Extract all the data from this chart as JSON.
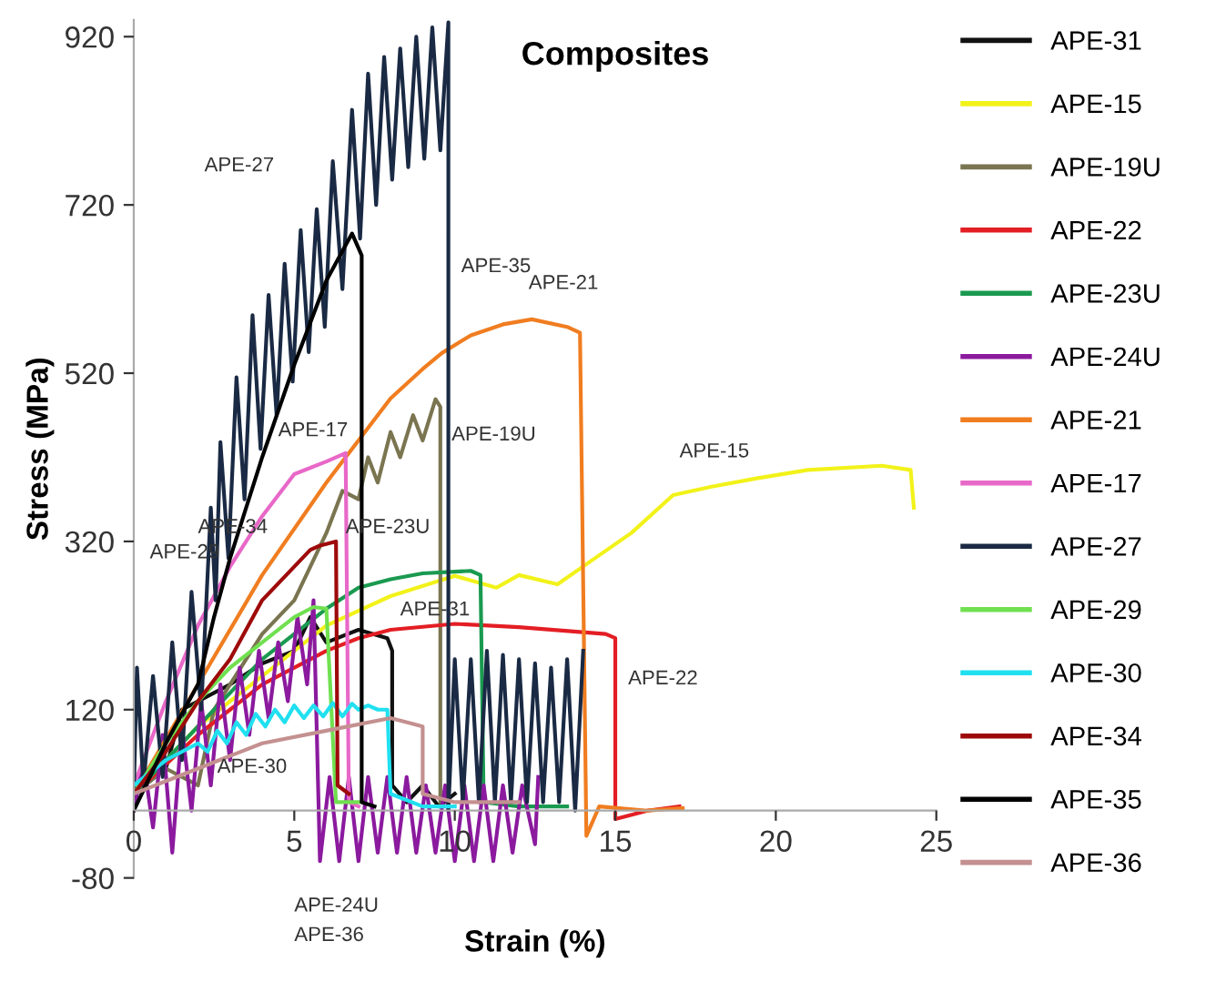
{
  "chart_data": {
    "type": "line",
    "title": "Composites",
    "xlabel": "Strain (%)",
    "ylabel": "Stress (MPa)",
    "xlim": [
      0,
      25
    ],
    "ylim": [
      -80,
      940
    ],
    "xticks": [
      0,
      5,
      10,
      15,
      20,
      25
    ],
    "yticks": [
      -80,
      120,
      320,
      520,
      720,
      920
    ],
    "grid": false,
    "legend": "right",
    "marker": "none",
    "line_style": "solid",
    "series": [
      {
        "name": "APE-31",
        "color": "#111111",
        "x": [
          0,
          1,
          1.5,
          2,
          3,
          4,
          5,
          5.5,
          6,
          7,
          7.9,
          8.05,
          8.05,
          8.5,
          9,
          9.5,
          10
        ],
        "values": [
          20,
          50,
          120,
          130,
          150,
          175,
          190,
          230,
          200,
          215,
          205,
          190,
          30,
          10,
          30,
          5,
          20
        ]
      },
      {
        "name": "APE-15",
        "color": "#f2f21a",
        "x": [
          0,
          2,
          4,
          6,
          8,
          10,
          11.3,
          12,
          13.2,
          14.1,
          15.5,
          16.8,
          18,
          19.4,
          21,
          23.3,
          24.2,
          24.3
        ],
        "values": [
          20,
          100,
          160,
          220,
          255,
          279,
          265,
          280,
          269,
          293,
          330,
          375,
          385,
          395,
          405,
          410,
          405,
          360
        ]
      },
      {
        "name": "APE-19U",
        "color": "#7a7550",
        "x": [
          0,
          1,
          2,
          2.5,
          3,
          4,
          5,
          5.5,
          6,
          6.5,
          7,
          7.3,
          7.6,
          8,
          8.3,
          8.7,
          9,
          9.4,
          9.55,
          9.55
        ],
        "values": [
          20,
          50,
          30,
          120,
          150,
          210,
          250,
          290,
          330,
          380,
          370,
          420,
          390,
          450,
          420,
          470,
          440,
          489,
          480,
          10
        ]
      },
      {
        "name": "APE-22",
        "color": "#e31e24",
        "x": [
          0,
          2,
          4,
          6,
          7,
          8,
          10,
          12,
          14.7,
          15,
          15,
          16,
          17
        ],
        "values": [
          20,
          90,
          150,
          190,
          205,
          215,
          222,
          218,
          210,
          205,
          -10,
          0,
          5
        ]
      },
      {
        "name": "APE-23U",
        "color": "#1a9a50",
        "x": [
          0,
          2,
          4,
          6,
          7,
          8,
          9,
          10.5,
          10.8,
          10.9,
          12,
          13.5
        ],
        "values": [
          20,
          100,
          180,
          240,
          265,
          275,
          282,
          285,
          280,
          10,
          5,
          5
        ]
      },
      {
        "name": "APE-24U",
        "color": "#8b1a9e",
        "x": [
          0,
          0.3,
          0.6,
          0.9,
          1.2,
          1.5,
          1.8,
          2.1,
          2.4,
          2.7,
          3,
          3.3,
          3.6,
          3.9,
          4.2,
          4.5,
          4.8,
          5.1,
          5.4,
          5.6,
          5.8,
          6.1,
          6.4,
          6.7,
          7,
          7.3,
          7.6,
          7.9,
          8.2,
          8.5,
          8.8,
          9.1,
          9.4,
          9.7,
          10,
          10.3,
          10.6,
          10.9,
          11.2,
          11.5,
          11.8,
          12.1,
          12.5,
          12.6
        ],
        "values": [
          0,
          60,
          -20,
          90,
          -50,
          100,
          0,
          130,
          30,
          150,
          60,
          170,
          90,
          190,
          110,
          200,
          130,
          230,
          150,
          250,
          -60,
          40,
          -60,
          40,
          -60,
          40,
          -50,
          40,
          -50,
          40,
          -50,
          30,
          -50,
          30,
          -60,
          30,
          -60,
          30,
          -60,
          30,
          -50,
          30,
          -40,
          40
        ]
      },
      {
        "name": "APE-21",
        "color": "#f07d20",
        "x": [
          0,
          2,
          4,
          6,
          7,
          8,
          9,
          9.6,
          10.5,
          11.5,
          12.4,
          13.5,
          13.9,
          14.1,
          14.5,
          16,
          17.1
        ],
        "values": [
          20,
          150,
          280,
          390,
          440,
          490,
          525,
          544,
          565,
          578,
          584,
          575,
          568,
          -30,
          5,
          0,
          3
        ]
      },
      {
        "name": "APE-17",
        "color": "#e868c8",
        "x": [
          0,
          1,
          2,
          3,
          4,
          5,
          6,
          6.6,
          6.7,
          7
        ],
        "values": [
          30,
          130,
          220,
          290,
          350,
          400,
          415,
          425,
          10,
          5
        ]
      },
      {
        "name": "APE-27",
        "color": "#1a2a44",
        "x": [
          0,
          0.1,
          0.3,
          0.6,
          0.9,
          1.2,
          1.5,
          1.8,
          2.1,
          2.4,
          2.55,
          2.7,
          2.95,
          3.2,
          3.45,
          3.7,
          3.95,
          4.2,
          4.45,
          4.7,
          4.95,
          5.2,
          5.45,
          5.7,
          5.95,
          6.2,
          6.5,
          6.8,
          7.05,
          7.3,
          7.55,
          7.8,
          8.05,
          8.3,
          8.55,
          8.8,
          9.05,
          9.3,
          9.55,
          9.8,
          9.8,
          10,
          10.25,
          10.5,
          10.75,
          11,
          11.25,
          11.5,
          11.75,
          12,
          12.25,
          12.5,
          12.75,
          13,
          13.25,
          13.5,
          13.75,
          14
        ],
        "values": [
          20,
          170,
          30,
          160,
          40,
          200,
          60,
          260,
          120,
          360,
          250,
          438,
          300,
          515,
          370,
          589,
          430,
          613,
          470,
          650,
          510,
          690,
          545,
          715,
          575,
          772,
          620,
          833,
          680,
          876,
          720,
          896,
          750,
          906,
          765,
          920,
          775,
          931,
          785,
          937,
          0,
          180,
          10,
          180,
          10,
          190,
          10,
          185,
          10,
          180,
          10,
          175,
          10,
          170,
          10,
          180,
          0,
          190
        ]
      },
      {
        "name": "APE-29",
        "color": "#70e050",
        "x": [
          0,
          1,
          2,
          3,
          4,
          5,
          5.6,
          6,
          6.3,
          7
        ],
        "values": [
          20,
          80,
          130,
          170,
          200,
          230,
          242,
          240,
          10,
          10
        ]
      },
      {
        "name": "APE-30",
        "color": "#20e0f0",
        "x": [
          0,
          1,
          2,
          2.3,
          2.6,
          2.9,
          3.2,
          3.5,
          3.8,
          4.1,
          4.4,
          4.7,
          5,
          5.3,
          5.6,
          5.9,
          6.2,
          6.5,
          6.8,
          7,
          7.3,
          7.6,
          7.9,
          8,
          9,
          10
        ],
        "values": [
          30,
          60,
          80,
          70,
          95,
          80,
          105,
          90,
          115,
          100,
          120,
          105,
          125,
          110,
          125,
          112,
          128,
          112,
          127,
          120,
          125,
          120,
          120,
          20,
          5,
          5
        ]
      },
      {
        "name": "APE-34",
        "color": "#9e0a0a",
        "x": [
          0,
          1,
          2,
          3,
          4,
          5,
          5.5,
          5.8,
          6.3,
          6.35,
          6.7
        ],
        "values": [
          20,
          70,
          130,
          180,
          250,
          290,
          310,
          315,
          320,
          30,
          20
        ]
      },
      {
        "name": "APE-35",
        "color": "#000000",
        "x": [
          0,
          1,
          2,
          2.5,
          3,
          4,
          5,
          6,
          6.8,
          7.1,
          7.1,
          7.5
        ],
        "values": [
          0,
          80,
          150,
          230,
          300,
          420,
          530,
          630,
          686,
          660,
          10,
          5
        ]
      },
      {
        "name": "APE-36",
        "color": "#c49090",
        "x": [
          0,
          2,
          4,
          6,
          8,
          8.6,
          9,
          9,
          10,
          12
        ],
        "values": [
          20,
          50,
          80,
          95,
          110,
          104,
          100,
          20,
          10,
          10
        ]
      }
    ],
    "annotations": [
      "APE-27",
      "APE-35",
      "APE-21",
      "APE-19U",
      "APE-17",
      "APE-15",
      "APE-23U",
      "APE-34",
      "APE-29",
      "APE-31",
      "APE-30",
      "APE-22",
      "APE-24U",
      "APE-36"
    ]
  }
}
